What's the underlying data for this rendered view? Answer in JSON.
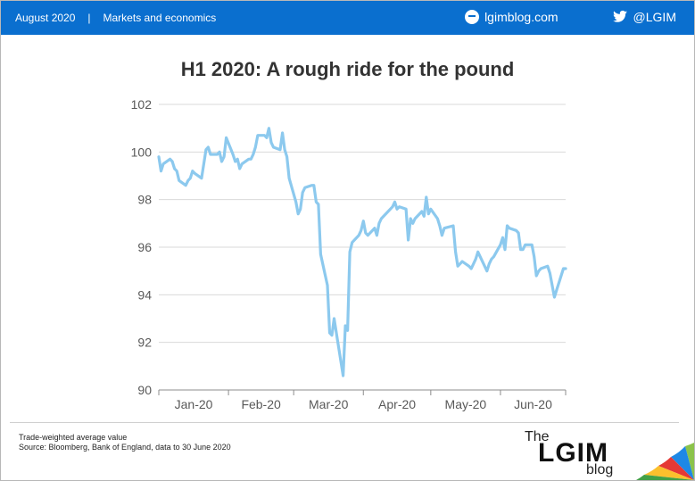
{
  "header": {
    "date": "August 2020",
    "separator": "|",
    "section": "Markets and economics",
    "site": "lgimblog.com",
    "twitter": "@LGIM",
    "bar_color": "#0a6fcf"
  },
  "icons": {
    "site_icon": "chat-icon",
    "twitter_icon": "bird-icon"
  },
  "chart_data": {
    "type": "line",
    "title": "H1 2020: A rough ride for the pound",
    "xlabel": "",
    "ylabel": "",
    "ylim": [
      90,
      102
    ],
    "yticks": [
      90,
      92,
      94,
      96,
      98,
      100,
      102
    ],
    "xticks": [
      "Jan-20",
      "Feb-20",
      "Mar-20",
      "Apr-20",
      "May-20",
      "Jun-20"
    ],
    "grid": true,
    "line_color": "#8cc9ee",
    "series": [
      {
        "name": "",
        "x": [
          "2020-01-01",
          "2020-01-02",
          "2020-01-03",
          "2020-01-06",
          "2020-01-07",
          "2020-01-08",
          "2020-01-09",
          "2020-01-10",
          "2020-01-13",
          "2020-01-14",
          "2020-01-15",
          "2020-01-16",
          "2020-01-17",
          "2020-01-20",
          "2020-01-21",
          "2020-01-22",
          "2020-01-23",
          "2020-01-24",
          "2020-01-27",
          "2020-01-28",
          "2020-01-29",
          "2020-01-30",
          "2020-01-31",
          "2020-02-03",
          "2020-02-04",
          "2020-02-05",
          "2020-02-06",
          "2020-02-07",
          "2020-02-10",
          "2020-02-11",
          "2020-02-12",
          "2020-02-13",
          "2020-02-14",
          "2020-02-17",
          "2020-02-18",
          "2020-02-19",
          "2020-02-20",
          "2020-02-21",
          "2020-02-24",
          "2020-02-25",
          "2020-02-26",
          "2020-02-27",
          "2020-02-28",
          "2020-03-02",
          "2020-03-03",
          "2020-03-04",
          "2020-03-05",
          "2020-03-06",
          "2020-03-09",
          "2020-03-10",
          "2020-03-11",
          "2020-03-12",
          "2020-03-13",
          "2020-03-16",
          "2020-03-17",
          "2020-03-18",
          "2020-03-19",
          "2020-03-20",
          "2020-03-23",
          "2020-03-24",
          "2020-03-25",
          "2020-03-26",
          "2020-03-27",
          "2020-03-30",
          "2020-03-31",
          "2020-04-01",
          "2020-04-02",
          "2020-04-03",
          "2020-04-06",
          "2020-04-07",
          "2020-04-08",
          "2020-04-09",
          "2020-04-14",
          "2020-04-15",
          "2020-04-16",
          "2020-04-17",
          "2020-04-20",
          "2020-04-21",
          "2020-04-22",
          "2020-04-23",
          "2020-04-24",
          "2020-04-27",
          "2020-04-28",
          "2020-04-29",
          "2020-04-30",
          "2020-05-01",
          "2020-05-04",
          "2020-05-05",
          "2020-05-06",
          "2020-05-07",
          "2020-05-11",
          "2020-05-12",
          "2020-05-13",
          "2020-05-14",
          "2020-05-15",
          "2020-05-18",
          "2020-05-19",
          "2020-05-20",
          "2020-05-21",
          "2020-05-22",
          "2020-05-26",
          "2020-05-27",
          "2020-05-28",
          "2020-05-29",
          "2020-06-01",
          "2020-06-02",
          "2020-06-03",
          "2020-06-04",
          "2020-06-05",
          "2020-06-08",
          "2020-06-09",
          "2020-06-10",
          "2020-06-11",
          "2020-06-12",
          "2020-06-15",
          "2020-06-16",
          "2020-06-17",
          "2020-06-18",
          "2020-06-19",
          "2020-06-22",
          "2020-06-23",
          "2020-06-24",
          "2020-06-25",
          "2020-06-26",
          "2020-06-29",
          "2020-06-30"
        ],
        "values": [
          99.8,
          99.2,
          99.5,
          99.7,
          99.6,
          99.3,
          99.2,
          98.8,
          98.6,
          98.8,
          98.9,
          99.2,
          99.1,
          98.9,
          99.5,
          100.1,
          100.2,
          99.9,
          99.9,
          100.0,
          99.6,
          99.8,
          100.6,
          99.9,
          99.6,
          99.7,
          99.3,
          99.5,
          99.7,
          99.7,
          99.9,
          100.2,
          100.7,
          100.7,
          100.6,
          101.0,
          100.4,
          100.2,
          100.1,
          100.8,
          100.1,
          99.8,
          98.9,
          97.9,
          97.4,
          97.6,
          98.3,
          98.5,
          98.6,
          98.6,
          97.9,
          97.8,
          95.7,
          94.4,
          92.4,
          92.3,
          93.0,
          92.4,
          90.6,
          92.7,
          92.5,
          95.8,
          96.2,
          96.5,
          96.7,
          97.1,
          96.6,
          96.5,
          96.8,
          96.5,
          97.0,
          97.2,
          97.7,
          97.9,
          97.6,
          97.7,
          97.6,
          96.3,
          97.2,
          97.0,
          97.2,
          97.5,
          97.3,
          98.1,
          97.4,
          97.6,
          97.2,
          96.9,
          96.5,
          96.8,
          96.9,
          95.8,
          95.2,
          95.3,
          95.4,
          95.2,
          95.1,
          95.3,
          95.5,
          95.8,
          95.0,
          95.3,
          95.5,
          95.6,
          96.1,
          96.4,
          95.9,
          96.9,
          96.8,
          96.7,
          96.6,
          95.9,
          95.9,
          96.1,
          96.1,
          95.6,
          94.8,
          95.0,
          95.1,
          95.2,
          94.9,
          94.4,
          93.9,
          94.2,
          95.1,
          95.1
        ]
      }
    ]
  },
  "footer": {
    "note_line1": "Trade-weighted average value",
    "note_line2": "Source: Bloomberg, Bank of England, data to 30 June 2020"
  },
  "logo": {
    "the": "The",
    "main": "LGIM",
    "blog": "blog"
  }
}
